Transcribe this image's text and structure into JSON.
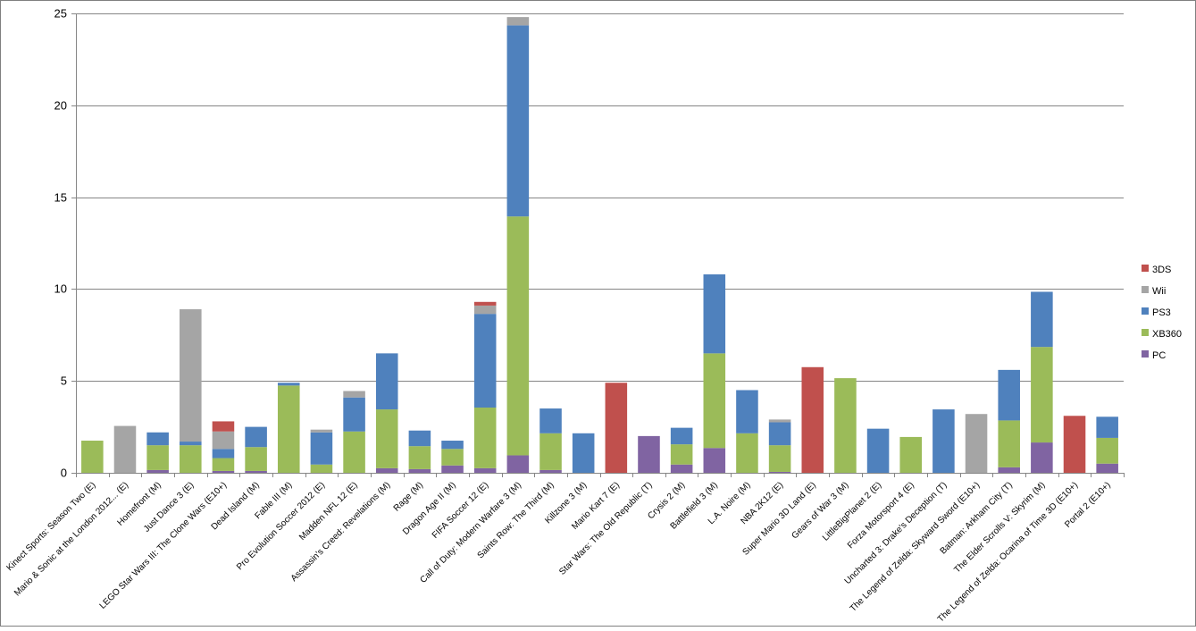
{
  "chart_data": {
    "type": "bar",
    "stacked": true,
    "title": "",
    "xlabel": "",
    "ylabel": "",
    "ylim": [
      0,
      25
    ],
    "yticks": [
      0,
      5,
      10,
      15,
      20,
      25
    ],
    "grid": "horizontal",
    "legend_position": "right",
    "categories": [
      "Kinect Sports: Season Two (E)",
      "Mario & Sonic at the London 2012... (E)",
      "Homefront (M)",
      "Just Dance 3 (E)",
      "LEGO Star Wars III: The Clone Wars (E10+)",
      "Dead Island (M)",
      "Fable III (M)",
      "Pro Evolution Soccer 2012 (E)",
      "Madden NFL 12 (E)",
      "Assassin's Creed: Revelations (M)",
      "Rage (M)",
      "Dragon Age II (M)",
      "FIFA Soccer 12 (E)",
      "Call of Duty: Modern Warfare 3 (M)",
      "Saints Row: The Third (M)",
      "Killzone 3 (M)",
      "Mario Kart 7 (E)",
      "Star Wars: The Old Republic (T)",
      "Crysis 2 (M)",
      "Battlefield 3 (M)",
      "L.A. Noire (M)",
      "NBA 2K12 (E)",
      "Super Mario 3D Land (E)",
      "Gears of War 3 (M)",
      "LittleBigPlanet 2 (E)",
      "Forza Motorsport 4 (E)",
      "Uncharted 3: Drake's Deception (T)",
      "The Legend of Zelda: Skyward Sword (E10+)",
      "Batman: Arkham City (T)",
      "The Elder Scrolls V: Skyrim (M)",
      "The Legend of Zelda: Ocarina of Time 3D (E10+)",
      "Portal 2 (E10+)"
    ],
    "series": [
      {
        "name": "PC",
        "color": "#8064A2",
        "values": [
          0,
          0,
          0.15,
          0,
          0.1,
          0.1,
          0,
          0,
          0,
          0.25,
          0.2,
          0.4,
          0.25,
          0.95,
          0.15,
          0,
          0,
          2.0,
          0.45,
          1.35,
          0,
          0.05,
          0,
          0,
          0,
          0,
          0,
          0,
          0.3,
          1.65,
          0,
          0.5
        ]
      },
      {
        "name": "XB360",
        "color": "#9BBB59",
        "values": [
          1.75,
          0,
          1.35,
          1.5,
          0.7,
          1.3,
          4.75,
          0.45,
          2.25,
          3.2,
          1.25,
          0.9,
          3.3,
          13.0,
          2.0,
          0,
          0,
          0,
          1.1,
          5.15,
          2.15,
          1.45,
          0,
          5.15,
          0,
          1.95,
          0,
          0,
          2.55,
          5.2,
          0,
          1.4
        ]
      },
      {
        "name": "PS3",
        "color": "#4F81BD",
        "values": [
          0,
          0,
          0.7,
          0.2,
          0.5,
          1.1,
          0.15,
          1.75,
          1.85,
          3.05,
          0.85,
          0.45,
          5.1,
          10.4,
          1.35,
          2.15,
          0,
          0,
          0.9,
          4.3,
          2.35,
          1.25,
          0,
          0,
          2.4,
          0,
          3.45,
          0,
          2.75,
          3.0,
          0,
          1.15
        ]
      },
      {
        "name": "Wii",
        "color": "#A5A5A5",
        "values": [
          0,
          2.55,
          0,
          7.2,
          0.95,
          0,
          0,
          0.15,
          0.35,
          0,
          0,
          0,
          0.45,
          0.45,
          0,
          0,
          0,
          0,
          0,
          0,
          0,
          0.15,
          0,
          0,
          0,
          0,
          0,
          3.2,
          0,
          0,
          0,
          0
        ]
      },
      {
        "name": "3DS",
        "color": "#C0504D",
        "values": [
          0,
          0,
          0,
          0,
          0.55,
          0,
          0,
          0,
          0,
          0,
          0,
          0,
          0.2,
          0,
          0,
          0,
          4.9,
          0,
          0,
          0,
          0,
          0,
          5.75,
          0,
          0,
          0,
          0,
          0,
          0,
          0,
          3.1,
          0
        ]
      }
    ],
    "legend_order": [
      "3DS",
      "Wii",
      "PS3",
      "XB360",
      "PC"
    ]
  }
}
